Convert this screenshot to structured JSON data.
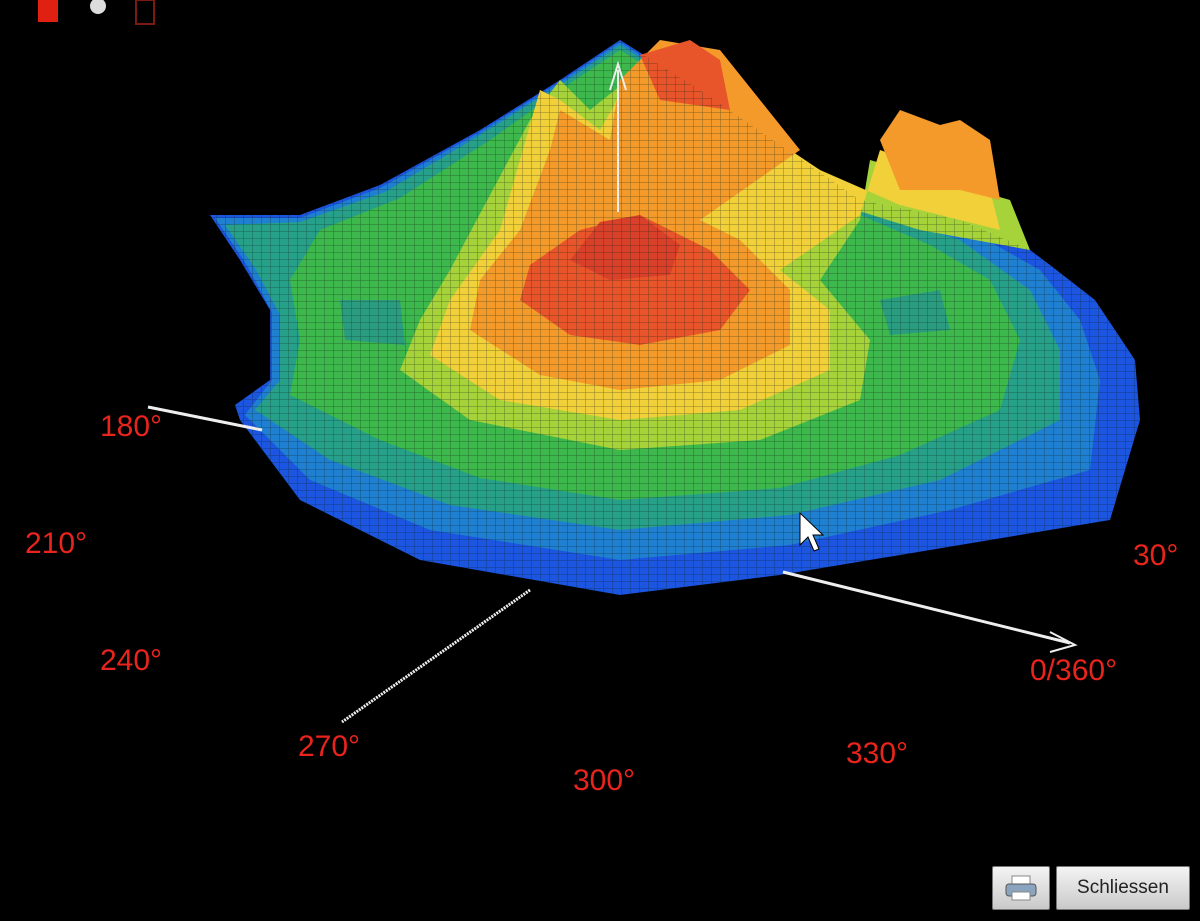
{
  "angle_labels": [
    "180°",
    "210°",
    "240°",
    "270°",
    "300°",
    "330°",
    "0/360°",
    "30°"
  ],
  "buttons": {
    "close": "Schliessen"
  }
}
